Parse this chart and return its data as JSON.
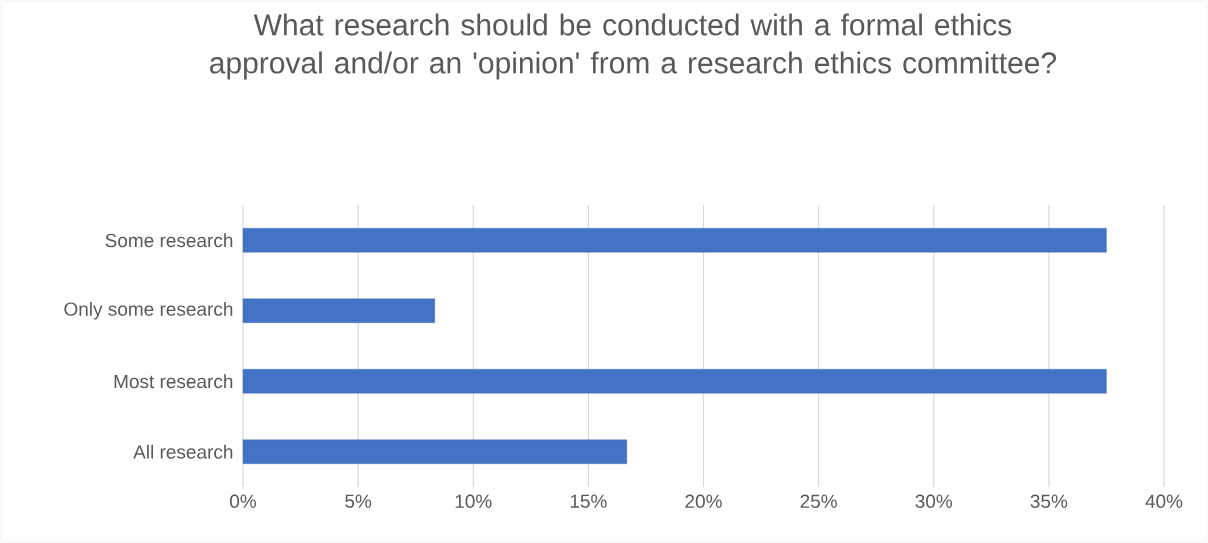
{
  "chart_data": {
    "type": "bar",
    "orientation": "horizontal",
    "title": "What research should be conducted with a formal ethics approval and/or an 'opinion' from a research ethics committee?",
    "categories": [
      "Some research",
      "Only some research",
      "Most research",
      "All research"
    ],
    "values": [
      37.5,
      8.33,
      37.5,
      16.67
    ],
    "color": "#4472c4",
    "xlim": [
      0,
      40
    ],
    "xticks": [
      {
        "value": 0,
        "label": "0%"
      },
      {
        "value": 5,
        "label": "5%"
      },
      {
        "value": 10,
        "label": "10%"
      },
      {
        "value": 15,
        "label": "15%"
      },
      {
        "value": 20,
        "label": "20%"
      },
      {
        "value": 25,
        "label": "25%"
      },
      {
        "value": 30,
        "label": "30%"
      },
      {
        "value": 35,
        "label": "35%"
      },
      {
        "value": 40,
        "label": "40%"
      }
    ],
    "grid": "x"
  }
}
